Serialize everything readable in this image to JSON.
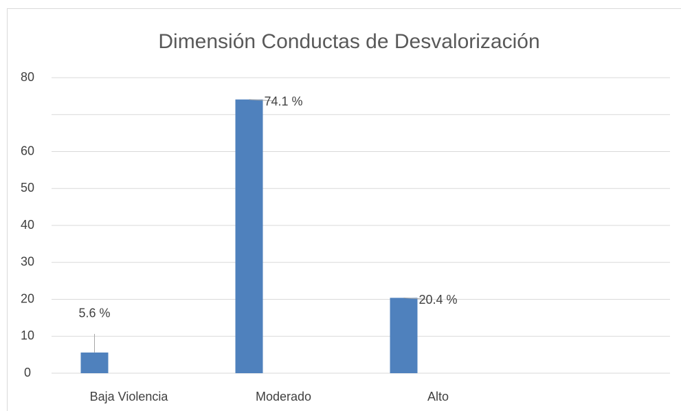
{
  "chart_data": {
    "type": "bar",
    "title": "Dimensión Conductas de Desvalorización",
    "categories": [
      "Baja Violencia",
      "Moderado",
      "Alto",
      null
    ],
    "values": [
      5.6,
      74.1,
      20.4,
      null
    ],
    "value_labels": [
      "5.6 %",
      "74.1 %",
      "20.4 %",
      null
    ],
    "color": "#4f81bd",
    "ylim": [
      0,
      80
    ],
    "yticks": [
      0,
      10,
      20,
      30,
      40,
      50,
      60,
      {
        "value": 70,
        "label": null
      },
      80
    ],
    "grid": true
  }
}
